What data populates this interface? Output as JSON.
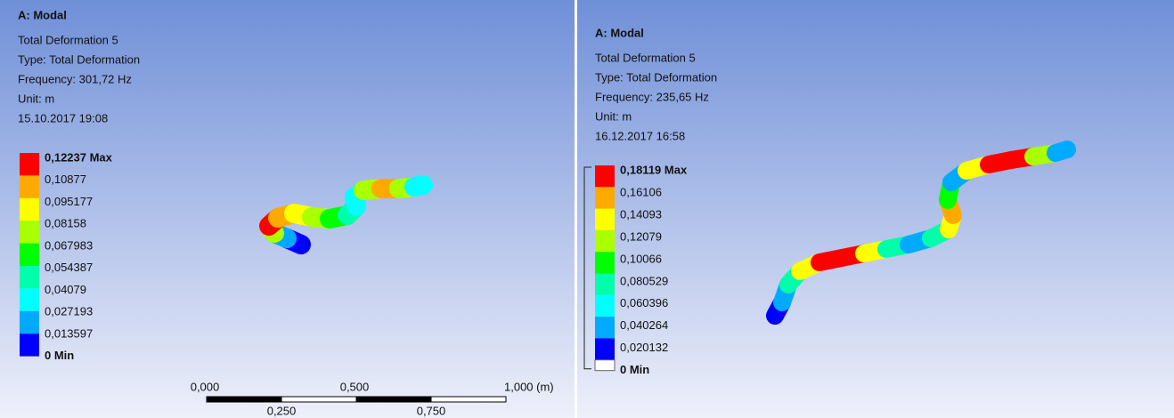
{
  "panels": [
    {
      "title": "A: Modal",
      "lines": [
        "Total Deformation 5",
        "Type: Total Deformation",
        "Frequency: 301,72 Hz",
        "Unit: m",
        "15.10.2017 19:08"
      ],
      "legend": [
        "0,12237 Max",
        "0,10877",
        "0,095177",
        "0,08158",
        "0,067983",
        "0,054387",
        "0,04079",
        "0,027193",
        "0,013597",
        "0 Min"
      ],
      "scale_top": [
        "0,000",
        "0,500",
        "1,000 (m)"
      ],
      "scale_bottom": [
        "0,250",
        "0,750"
      ]
    },
    {
      "title": "A: Modal",
      "lines": [
        "Total Deformation 5",
        "Type: Total Deformation",
        "Frequency: 235,65 Hz",
        "Unit: m",
        "16.12.2017 16:58"
      ],
      "legend": [
        "0,18119 Max",
        "0,16106",
        "0,14093",
        "0,12079",
        "0,10066",
        "0,080529",
        "0,060396",
        "0,040264",
        "0,020132",
        "0 Min"
      ]
    }
  ],
  "legend_colors": [
    "#ff0000",
    "#ffaa00",
    "#ffff00",
    "#aaff00",
    "#00ff00",
    "#00ffaa",
    "#00ffff",
    "#00aaff",
    "#0000ff"
  ]
}
